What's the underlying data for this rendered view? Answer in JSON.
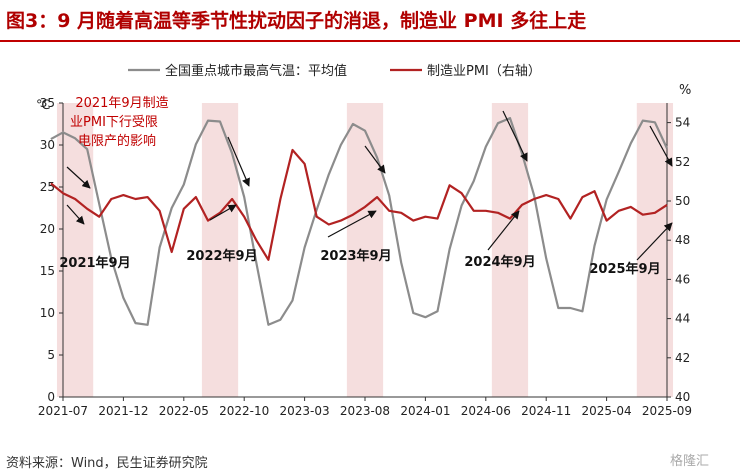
{
  "header": {
    "title": "图3：9 月随着高温等季节性扰动因子的消退，制造业 PMI 多往上走"
  },
  "footer": {
    "source": "资料来源：Wind，民生证券研究院",
    "watermark": "格隆汇"
  },
  "colors": {
    "temp": "#8c8c8c",
    "pmi": "#b22222",
    "shade": "#f5dede",
    "title": "#b00000",
    "annotation": "#c00000"
  },
  "chart_data": {
    "type": "line",
    "title": "",
    "x_ticks": [
      "2021-07",
      "2021-12",
      "2022-05",
      "2022-10",
      "2023-03",
      "2023-08",
      "2024-01",
      "2024-06",
      "2024-11",
      "2025-04",
      "2025-09"
    ],
    "y_left": {
      "label": "℃",
      "range": [
        0,
        35
      ],
      "ticks": [
        "0",
        "5",
        "10",
        "15",
        "20",
        "25",
        "30",
        "35"
      ]
    },
    "y_right": {
      "label": "%",
      "range": [
        40,
        55
      ],
      "ticks": [
        "40",
        "42",
        "44",
        "46",
        "48",
        "50",
        "52",
        "54"
      ]
    },
    "legend": [
      "全国重点城市最高气温：平均值",
      "制造业PMI（右轴）"
    ],
    "shaded_ranges": [
      [
        "2021-07",
        "2021-09"
      ],
      [
        "2022-07",
        "2022-09"
      ],
      [
        "2023-07",
        "2023-09"
      ],
      [
        "2024-07",
        "2024-09"
      ],
      [
        "2025-07",
        "2025-09"
      ]
    ],
    "series": [
      {
        "name": "全国重点城市最高气温：平均值",
        "axis": "left",
        "x": [
          "2021-06",
          "2021-07",
          "2021-08",
          "2021-09",
          "2021-10",
          "2021-11",
          "2021-12",
          "2022-01",
          "2022-02",
          "2022-03",
          "2022-04",
          "2022-05",
          "2022-06",
          "2022-07",
          "2022-08",
          "2022-09",
          "2022-10",
          "2022-11",
          "2022-12",
          "2023-01",
          "2023-02",
          "2023-03",
          "2023-04",
          "2023-05",
          "2023-06",
          "2023-07",
          "2023-08",
          "2023-09",
          "2023-10",
          "2023-11",
          "2023-12",
          "2024-01",
          "2024-02",
          "2024-03",
          "2024-04",
          "2024-05",
          "2024-06",
          "2024-07",
          "2024-08",
          "2024-09",
          "2024-10",
          "2024-11",
          "2024-12",
          "2025-01",
          "2025-02",
          "2025-03",
          "2025-04",
          "2025-05",
          "2025-06",
          "2025-07",
          "2025-08",
          "2025-09"
        ],
        "values": [
          30.7,
          31.5,
          30.8,
          29.5,
          23.0,
          16.5,
          11.8,
          8.8,
          8.6,
          17.8,
          22.5,
          25.3,
          30.1,
          32.9,
          32.8,
          29.0,
          23.8,
          16.0,
          8.6,
          9.2,
          11.5,
          17.8,
          22.3,
          26.5,
          30.0,
          32.5,
          31.7,
          28.5,
          24.0,
          16.0,
          10.0,
          9.5,
          10.2,
          17.6,
          22.8,
          25.7,
          29.8,
          32.6,
          33.2,
          29.0,
          24.0,
          16.5,
          10.6,
          10.6,
          10.2,
          18.0,
          23.5,
          26.8,
          30.2,
          32.9,
          32.7,
          29.6
        ]
      },
      {
        "name": "制造业PMI（右轴）",
        "axis": "right",
        "x": [
          "2021-06",
          "2021-07",
          "2021-08",
          "2021-09",
          "2021-10",
          "2021-11",
          "2021-12",
          "2022-01",
          "2022-02",
          "2022-03",
          "2022-04",
          "2022-05",
          "2022-06",
          "2022-07",
          "2022-08",
          "2022-09",
          "2022-10",
          "2022-11",
          "2022-12",
          "2023-01",
          "2023-02",
          "2023-03",
          "2023-04",
          "2023-05",
          "2023-06",
          "2023-07",
          "2023-08",
          "2023-09",
          "2023-10",
          "2023-11",
          "2023-12",
          "2024-01",
          "2024-02",
          "2024-03",
          "2024-04",
          "2024-05",
          "2024-06",
          "2024-07",
          "2024-08",
          "2024-09",
          "2024-10",
          "2024-11",
          "2024-12",
          "2025-01",
          "2025-02",
          "2025-03",
          "2025-04",
          "2025-05",
          "2025-06",
          "2025-07",
          "2025-08",
          "2025-09"
        ],
        "values": [
          50.9,
          50.4,
          50.1,
          49.6,
          49.2,
          50.1,
          50.3,
          50.1,
          50.2,
          49.5,
          47.4,
          49.6,
          50.2,
          49.0,
          49.4,
          50.1,
          49.2,
          48.0,
          47.0,
          50.1,
          52.6,
          51.9,
          49.2,
          48.8,
          49.0,
          49.3,
          49.7,
          50.2,
          49.5,
          49.4,
          49.0,
          49.2,
          49.1,
          50.8,
          50.4,
          49.5,
          49.5,
          49.4,
          49.1,
          49.8,
          50.1,
          50.3,
          50.1,
          49.1,
          50.2,
          50.5,
          49.0,
          49.5,
          49.7,
          49.3,
          49.4,
          49.8
        ]
      }
    ],
    "annotations": [
      {
        "text": "2021年9月制造\n业PMI下行受限\n电限产的影响",
        "color": "#c00000"
      },
      {
        "text": "2021年9月"
      },
      {
        "text": "2022年9月"
      },
      {
        "text": "2023年9月"
      },
      {
        "text": "2024年9月"
      },
      {
        "text": "2025年9月"
      }
    ]
  }
}
